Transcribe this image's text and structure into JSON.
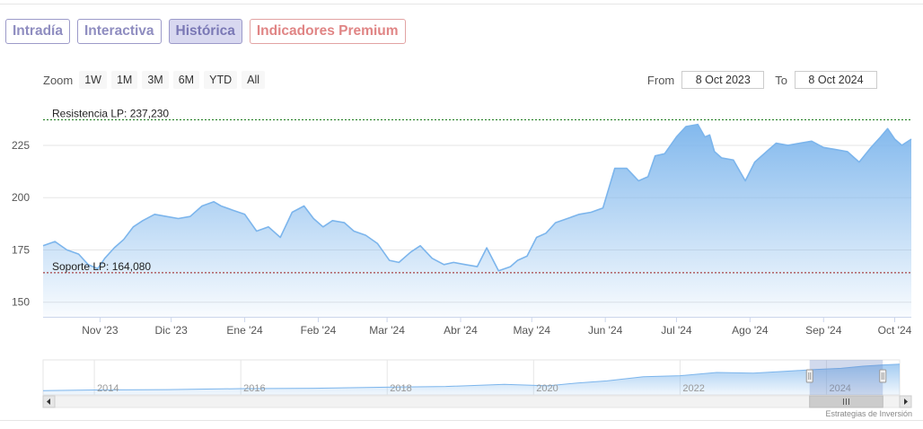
{
  "tabs": [
    {
      "label": "Intradía",
      "active": false
    },
    {
      "label": "Interactiva",
      "active": false
    },
    {
      "label": "Histórica",
      "active": true
    },
    {
      "label": "Indicadores Premium",
      "active": false
    }
  ],
  "zoom": {
    "label": "Zoom",
    "buttons": [
      "1W",
      "1M",
      "3M",
      "6M",
      "YTD",
      "All"
    ]
  },
  "range": {
    "from_label": "From",
    "from_value": "8 Oct 2023",
    "to_label": "To",
    "to_value": "8 Oct 2024"
  },
  "credit": "Estrategias de Inversión",
  "colors": {
    "series": "#7cb5ec",
    "resistance": "#1a7a1a",
    "support": "#9b1c1c"
  },
  "chart_data": {
    "type": "area",
    "title": "",
    "xlabel": "",
    "ylabel": "",
    "ylim": [
      143,
      243
    ],
    "yticks": [
      150,
      175,
      200,
      225
    ],
    "xticks": [
      {
        "label": "Nov '23",
        "date": "2023-11-01"
      },
      {
        "label": "Dic '23",
        "date": "2023-12-01"
      },
      {
        "label": "Ene '24",
        "date": "2024-01-01"
      },
      {
        "label": "Feb '24",
        "date": "2024-02-01"
      },
      {
        "label": "Mar '24",
        "date": "2024-03-01"
      },
      {
        "label": "Abr '24",
        "date": "2024-04-01"
      },
      {
        "label": "May '24",
        "date": "2024-05-01"
      },
      {
        "label": "Jun '24",
        "date": "2024-06-01"
      },
      {
        "label": "Jul '24",
        "date": "2024-07-01"
      },
      {
        "label": "Ago '24",
        "date": "2024-08-01"
      },
      {
        "label": "Sep '24",
        "date": "2024-09-01"
      },
      {
        "label": "Oct '24",
        "date": "2024-10-01"
      }
    ],
    "xrange": [
      "2023-10-08",
      "2024-10-08"
    ],
    "series": [
      {
        "x": [
          "2023-10-08",
          "2023-10-13",
          "2023-10-18",
          "2023-10-23",
          "2023-10-27",
          "2023-10-31",
          "2023-11-03",
          "2023-11-07",
          "2023-11-11",
          "2023-11-15",
          "2023-11-19",
          "2023-11-24",
          "2023-11-29",
          "2023-12-04",
          "2023-12-09",
          "2023-12-14",
          "2023-12-19",
          "2023-12-22",
          "2023-12-27",
          "2024-01-01",
          "2024-01-06",
          "2024-01-11",
          "2024-01-16",
          "2024-01-21",
          "2024-01-26",
          "2024-01-30",
          "2024-02-03",
          "2024-02-07",
          "2024-02-12",
          "2024-02-16",
          "2024-02-21",
          "2024-02-26",
          "2024-03-02",
          "2024-03-06",
          "2024-03-11",
          "2024-03-15",
          "2024-03-20",
          "2024-03-25",
          "2024-03-29",
          "2024-04-03",
          "2024-04-08",
          "2024-04-12",
          "2024-04-17",
          "2024-04-22",
          "2024-04-25",
          "2024-04-29",
          "2024-05-03",
          "2024-05-07",
          "2024-05-11",
          "2024-05-16",
          "2024-05-21",
          "2024-05-26",
          "2024-05-31",
          "2024-06-05",
          "2024-06-10",
          "2024-06-15",
          "2024-06-19",
          "2024-06-22",
          "2024-06-26",
          "2024-07-01",
          "2024-07-05",
          "2024-07-10",
          "2024-07-13",
          "2024-07-15",
          "2024-07-17",
          "2024-07-20",
          "2024-07-25",
          "2024-07-30",
          "2024-08-03",
          "2024-08-08",
          "2024-08-12",
          "2024-08-17",
          "2024-08-22",
          "2024-08-27",
          "2024-09-01",
          "2024-09-06",
          "2024-09-11",
          "2024-09-16",
          "2024-09-21",
          "2024-09-25",
          "2024-09-28",
          "2024-10-01",
          "2024-10-04",
          "2024-10-08"
        ],
        "values": [
          177,
          179,
          175,
          173,
          168,
          166,
          171,
          176,
          180,
          186,
          189,
          192,
          191,
          190,
          191,
          196,
          198,
          196,
          194,
          192,
          184,
          186,
          181,
          193,
          196,
          190,
          186,
          189,
          188,
          184,
          182,
          178,
          170,
          169,
          174,
          177,
          171,
          168,
          169,
          168,
          167,
          176,
          165,
          167,
          170,
          172,
          181,
          183,
          188,
          190,
          192,
          193,
          195,
          214,
          214,
          208,
          210,
          220,
          221,
          229,
          234,
          235,
          229,
          230,
          222,
          219,
          218,
          208,
          217,
          222,
          226,
          225,
          226,
          227,
          224,
          223,
          222,
          217,
          224,
          229,
          233,
          228,
          225,
          228
        ]
      }
    ],
    "reference_lines": [
      {
        "label": "Resistencia LP: 237,230",
        "value": 237.23
      },
      {
        "label": "Soporte LP: 164,080",
        "value": 164.08
      }
    ],
    "navigator": {
      "labels": [
        "2014",
        "2016",
        "2018",
        "2020",
        "2022",
        "2024"
      ],
      "x": [
        2013.3,
        2014.0,
        2015.0,
        2016.0,
        2017.0,
        2018.0,
        2018.8,
        2019.6,
        2020.2,
        2020.6,
        2021.0,
        2021.5,
        2022.0,
        2022.5,
        2023.0,
        2023.4,
        2023.8,
        2024.2,
        2024.5,
        2024.8,
        2025.0
      ],
      "values": [
        12,
        14,
        15,
        18,
        19,
        22,
        24,
        30,
        26,
        34,
        40,
        52,
        55,
        64,
        62,
        67,
        72,
        76,
        82,
        86,
        88
      ],
      "range": [
        2013.3,
        2025.0
      ],
      "selected": [
        2023.77,
        2024.77
      ]
    }
  }
}
